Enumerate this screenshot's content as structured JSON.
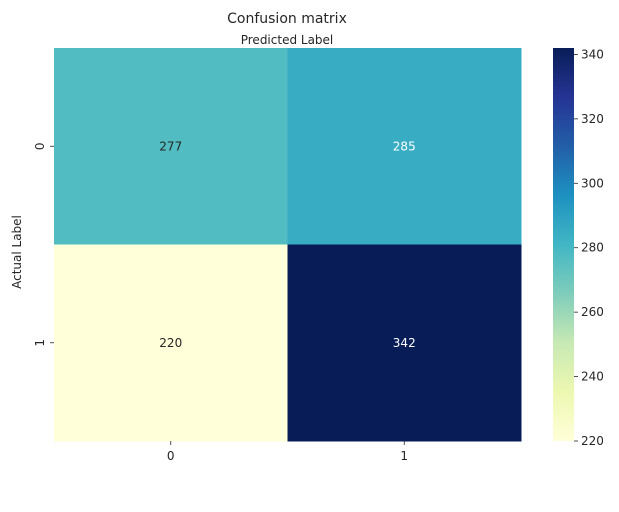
{
  "chart_data": {
    "type": "heatmap",
    "title": "Confusion matrix",
    "xlabel": "Predicted Label",
    "ylabel": "Actual Label",
    "x_categories": [
      "0",
      "1"
    ],
    "y_categories": [
      "0",
      "1"
    ],
    "values": [
      [
        277,
        285
      ],
      [
        220,
        342
      ]
    ],
    "colorbar": {
      "min": 220,
      "max": 342,
      "ticks": [
        220,
        240,
        260,
        280,
        300,
        320,
        340
      ],
      "colormap": "YlGnBu",
      "stops": [
        "#ffffd9",
        "#edf8b1",
        "#c7e9b4",
        "#7fcdbb",
        "#41b6c4",
        "#1d91c0",
        "#225ea8",
        "#253494",
        "#081d58"
      ]
    },
    "annotation_colors": {
      "light_text": "#ffffff",
      "dark_text": "#262626"
    }
  }
}
